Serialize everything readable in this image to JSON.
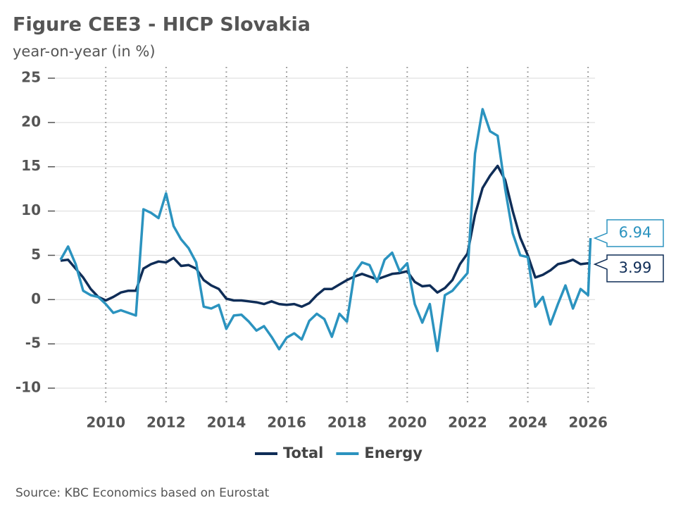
{
  "chart_data": {
    "type": "line",
    "title": "Figure CEE3 - HICP Slovakia",
    "subtitle": "year-on-year (in %)",
    "source": "Source: KBC Economics based on Eurostat",
    "x": [
      2008.5,
      2008.75,
      2009,
      2009.25,
      2009.5,
      2009.75,
      2010,
      2010.25,
      2010.5,
      2010.75,
      2011,
      2011.25,
      2011.5,
      2011.75,
      2012,
      2012.25,
      2012.5,
      2012.75,
      2013,
      2013.25,
      2013.5,
      2013.75,
      2014,
      2014.25,
      2014.5,
      2014.75,
      2015,
      2015.25,
      2015.5,
      2015.75,
      2016,
      2016.25,
      2016.5,
      2016.75,
      2017,
      2017.25,
      2017.5,
      2017.75,
      2018,
      2018.25,
      2018.5,
      2018.75,
      2019,
      2019.25,
      2019.5,
      2019.75,
      2020,
      2020.25,
      2020.5,
      2020.75,
      2021,
      2021.25,
      2021.5,
      2021.75,
      2022,
      2022.25,
      2022.5,
      2022.75,
      2023,
      2023.25,
      2023.5,
      2023.75,
      2024,
      2024.25,
      2024.5,
      2024.75,
      2025,
      2025.25,
      2025.5,
      2025.75,
      2026,
      2026.08
    ],
    "series": [
      {
        "name": "Total",
        "color": "#0f2d57",
        "values": [
          4.4,
          4.5,
          3.5,
          2.5,
          1.2,
          0.3,
          -0.1,
          0.3,
          0.8,
          1.0,
          1.0,
          3.5,
          4.0,
          4.3,
          4.2,
          4.7,
          3.8,
          3.9,
          3.5,
          2.2,
          1.6,
          1.2,
          0.1,
          -0.1,
          -0.1,
          -0.2,
          -0.3,
          -0.5,
          -0.2,
          -0.5,
          -0.6,
          -0.5,
          -0.8,
          -0.4,
          0.5,
          1.2,
          1.2,
          1.7,
          2.2,
          2.6,
          2.9,
          2.6,
          2.3,
          2.6,
          2.9,
          3.0,
          3.2,
          2.0,
          1.5,
          1.6,
          0.8,
          1.3,
          2.2,
          4.0,
          5.2,
          9.6,
          12.6,
          14.0,
          15.1,
          13.5,
          10.0,
          7.0,
          5.0,
          2.5,
          2.8,
          3.3,
          4.0,
          4.2,
          4.5,
          4.0,
          4.1,
          3.99
        ]
      },
      {
        "name": "Energy",
        "color": "#2b93bf",
        "values": [
          4.5,
          6.0,
          4.0,
          1.0,
          0.5,
          0.3,
          -0.5,
          -1.5,
          -1.2,
          -1.5,
          -1.8,
          10.2,
          9.8,
          9.2,
          12.0,
          8.3,
          6.8,
          5.8,
          4.2,
          -0.8,
          -1.0,
          -0.6,
          -3.3,
          -1.8,
          -1.7,
          -2.5,
          -3.5,
          -3.0,
          -4.2,
          -5.6,
          -4.3,
          -3.8,
          -4.5,
          -2.4,
          -1.6,
          -2.2,
          -4.2,
          -1.6,
          -2.5,
          3.0,
          4.2,
          3.9,
          2.0,
          4.5,
          5.3,
          3.2,
          4.1,
          -0.5,
          -2.6,
          -0.5,
          -5.8,
          0.5,
          1.0,
          2.0,
          3.0,
          16.5,
          21.5,
          19.0,
          18.5,
          12.5,
          7.5,
          5.0,
          4.8,
          -0.8,
          0.3,
          -2.8,
          -0.5,
          1.6,
          -1.0,
          1.2,
          0.5,
          6.94
        ]
      }
    ],
    "xlim": [
      2008.08,
      2026.23
    ],
    "ylim": [
      -10,
      25
    ],
    "xticks": [
      2010,
      2012,
      2014,
      2016,
      2018,
      2020,
      2022,
      2024,
      2026
    ],
    "yticks": [
      -10,
      -5,
      0,
      5,
      10,
      15,
      20,
      25
    ],
    "grid": true
  }
}
